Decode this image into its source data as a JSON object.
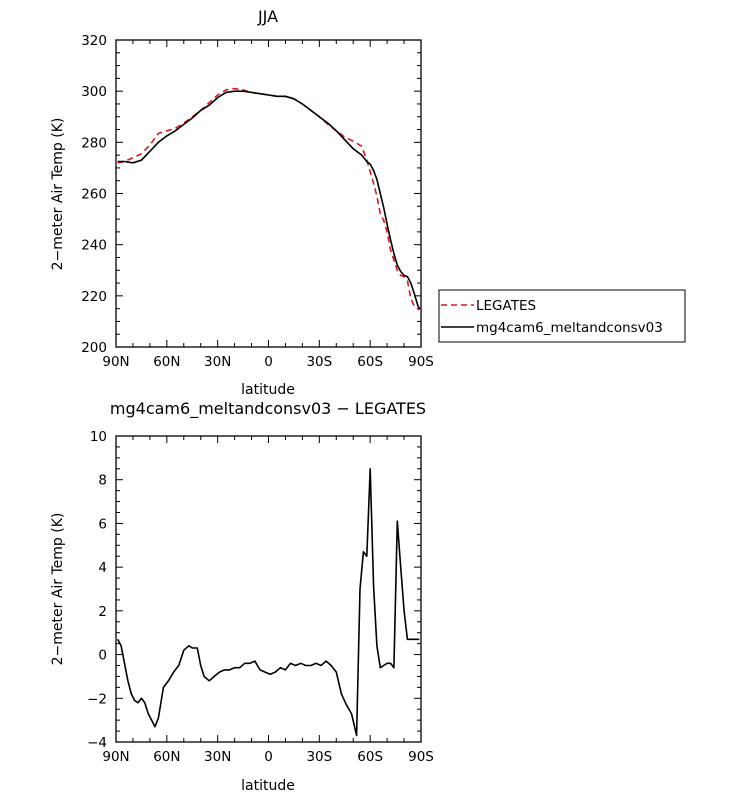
{
  "chart_data": [
    {
      "type": "line",
      "title": "JJA",
      "xlabel": "latitude",
      "ylabel": "2−meter Air Temp (K)",
      "xlim": [
        90,
        -90
      ],
      "ylim": [
        200,
        320
      ],
      "x_ticks": [
        90,
        60,
        30,
        0,
        -30,
        -60,
        -90
      ],
      "x_tick_labels": [
        "90N",
        "60N",
        "30N",
        "0",
        "30S",
        "60S",
        "90S"
      ],
      "y_ticks": [
        200,
        220,
        240,
        260,
        280,
        300,
        320
      ],
      "y_tick_labels": [
        "200",
        "220",
        "240",
        "260",
        "280",
        "300",
        "320"
      ],
      "legend": {
        "placement": "outside-right",
        "entries": [
          "LEGATES",
          "mg4cam6_meltandconsv03"
        ]
      },
      "series": [
        {
          "name": "LEGATES",
          "color": "#e0141e",
          "dash": "dashed",
          "x": [
            89,
            85,
            80,
            75,
            70,
            65,
            60,
            55,
            50,
            45,
            40,
            35,
            30,
            25,
            20,
            15,
            10,
            5,
            0,
            -5,
            -10,
            -15,
            -20,
            -25,
            -30,
            -35,
            -40,
            -45,
            -50,
            -55,
            -58,
            -60,
            -62,
            -64,
            -66,
            -68,
            -70,
            -72,
            -74,
            -76,
            -78,
            -80,
            -82,
            -84,
            -86,
            -88,
            -89
          ],
          "values": [
            272,
            272.5,
            274,
            275.5,
            279,
            283.5,
            284.5,
            285.5,
            287.5,
            290,
            292.5,
            295.5,
            298.5,
            300.5,
            301,
            300.5,
            299.5,
            299,
            298.5,
            298,
            298,
            297,
            295,
            292.5,
            290,
            287,
            284.5,
            282,
            280.5,
            278.5,
            273,
            268.5,
            264,
            259,
            252,
            249.5,
            245,
            238,
            234,
            230,
            228,
            227.5,
            226,
            219,
            216,
            215,
            214.5
          ]
        },
        {
          "name": "mg4cam6_meltandconsv03",
          "color": "#000000",
          "dash": "solid",
          "x": [
            89,
            85,
            80,
            75,
            70,
            65,
            60,
            55,
            50,
            45,
            40,
            35,
            30,
            25,
            20,
            15,
            10,
            5,
            0,
            -5,
            -10,
            -15,
            -20,
            -25,
            -30,
            -35,
            -40,
            -45,
            -50,
            -55,
            -58,
            -60,
            -62,
            -64,
            -66,
            -68,
            -70,
            -72,
            -74,
            -76,
            -78,
            -80,
            -82,
            -84,
            -86,
            -88,
            -89
          ],
          "values": [
            272.5,
            272.5,
            272,
            273,
            276.5,
            280,
            282.5,
            284.5,
            287,
            289.5,
            292.5,
            294.5,
            297.5,
            299.5,
            300,
            300,
            299.5,
            299,
            298.5,
            298,
            298,
            297,
            295,
            292.5,
            290,
            287.5,
            284.5,
            281,
            277.5,
            275,
            272.5,
            271.5,
            269,
            265.5,
            260,
            254.5,
            248,
            242,
            236.5,
            232,
            229.5,
            228,
            227.5,
            225,
            221,
            216.5,
            215
          ]
        }
      ]
    },
    {
      "type": "line",
      "title": "mg4cam6_meltandconsv03  −  LEGATES",
      "xlabel": "latitude",
      "ylabel": "2−meter Air Temp (K)",
      "xlim": [
        90,
        -90
      ],
      "ylim": [
        -4,
        10
      ],
      "x_ticks": [
        90,
        60,
        30,
        0,
        -30,
        -60,
        -90
      ],
      "x_tick_labels": [
        "90N",
        "60N",
        "30N",
        "0",
        "30S",
        "60S",
        "90S"
      ],
      "y_ticks": [
        -4,
        -2,
        0,
        2,
        4,
        6,
        8,
        10
      ],
      "y_tick_labels": [
        "−4",
        "−2",
        "0",
        "2",
        "4",
        "6",
        "8",
        "10"
      ],
      "series": [
        {
          "color": "#000000",
          "dash": "solid",
          "x": [
            89,
            87,
            85,
            83,
            81,
            79,
            77,
            75,
            73,
            71,
            69,
            67,
            65,
            62,
            59,
            56,
            53,
            50,
            47,
            45,
            42,
            40,
            38,
            35,
            32,
            29,
            26,
            23,
            20,
            17,
            14,
            11,
            8,
            5,
            2,
            -1,
            -4,
            -7,
            -10,
            -13,
            -16,
            -19,
            -22,
            -25,
            -28,
            -31,
            -34,
            -37,
            -40,
            -43,
            -46,
            -49,
            -52,
            -54,
            -56,
            -58,
            -60,
            -62,
            -64,
            -66,
            -68,
            -70,
            -72,
            -74,
            -76,
            -78,
            -80,
            -82,
            -84,
            -86,
            -88,
            -89
          ],
          "values": [
            0.7,
            0.4,
            -0.4,
            -1.2,
            -1.8,
            -2.1,
            -2.2,
            -2.0,
            -2.2,
            -2.7,
            -3.0,
            -3.3,
            -2.9,
            -1.5,
            -1.2,
            -0.8,
            -0.5,
            0.2,
            0.4,
            0.3,
            0.3,
            -0.5,
            -1.0,
            -1.2,
            -1.0,
            -0.8,
            -0.7,
            -0.7,
            -0.6,
            -0.6,
            -0.4,
            -0.4,
            -0.3,
            -0.7,
            -0.8,
            -0.9,
            -0.8,
            -0.6,
            -0.7,
            -0.4,
            -0.5,
            -0.4,
            -0.5,
            -0.5,
            -0.4,
            -0.5,
            -0.3,
            -0.5,
            -0.8,
            -1.8,
            -2.3,
            -2.7,
            -3.7,
            3.0,
            4.7,
            4.5,
            8.5,
            3.1,
            0.4,
            -0.6,
            -0.5,
            -0.4,
            -0.4,
            -0.6,
            6.1,
            4.0,
            2.0,
            0.7,
            0.7,
            0.7,
            0.7,
            0.7
          ]
        }
      ]
    }
  ]
}
